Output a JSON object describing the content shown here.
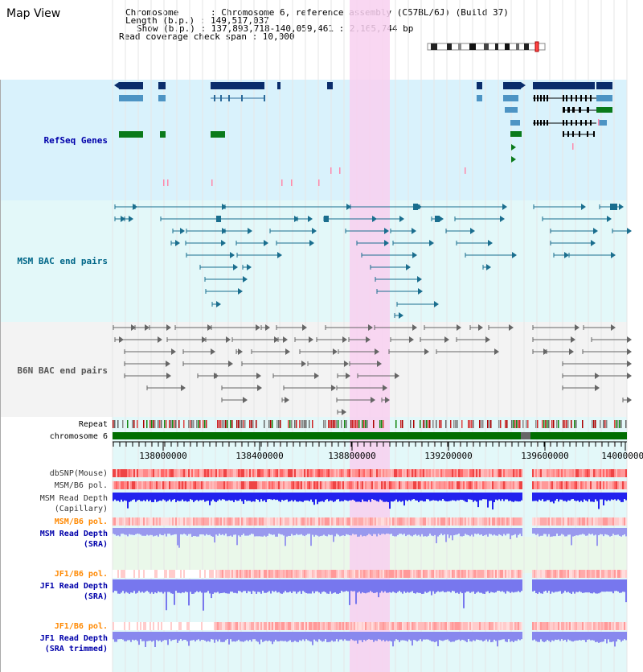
{
  "app_title": "Map View",
  "info": {
    "chromosome_line": "Chromosome      : Chromosome 6, reference assembly (C57BL/6J) (Build 37)",
    "length_line": "Length (b.p.) : 149,517,037",
    "show_line": "Show (b.p.) : 137,893,718-140,059,461 : 2,165,744 bp",
    "coverage_line": "Read coverage check span : 10,000"
  },
  "tracks": {
    "refseq": "RefSeq Genes",
    "msm_bac": "MSM BAC end pairs",
    "b6n_bac": "B6N BAC end pairs",
    "repeat": "Repeat",
    "chromosome": "chromosome 6",
    "dbsnp": "dbSNP(Mouse)",
    "msm_b6_pol_1": "MSM/B6 pol.",
    "msm_depth_cap_1": "MSM Read Depth",
    "msm_depth_cap_2": "(Capillary)",
    "msm_b6_pol_2": "MSM/B6 pol.",
    "msm_depth_sra_1": "MSM Read Depth",
    "msm_depth_sra_2": "(SRA)",
    "jf1_b6_pol_1": "JF1/B6 pol.",
    "jf1_depth_sra_1": "JF1 Read Depth",
    "jf1_depth_sra_2": "(SRA)",
    "jf1_b6_pol_2": "JF1/B6 pol.",
    "jf1_depth_trim_1": "JF1 Read Depth",
    "jf1_depth_trim_2": "(SRA trimmed)"
  },
  "axis": {
    "ticks": [
      "138000000",
      "138400000",
      "138800000",
      "139200000",
      "139600000",
      "140000000"
    ]
  },
  "colors": {
    "refseq_bg": "#d9f2fc",
    "msm_bg": "#e3f8f9",
    "b6n_bg": "#f3f3f3",
    "highlight": "#f8d0f0",
    "label_blue": "#0000aa",
    "label_orange": "#ff8800",
    "label_gray": "#333333"
  }
}
